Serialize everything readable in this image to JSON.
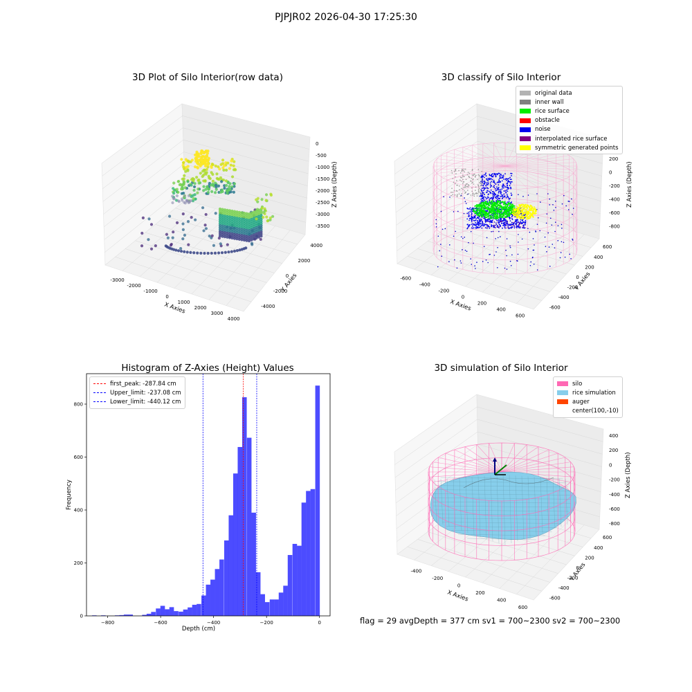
{
  "figure_title": "PJPJR02 2026-04-30 17:25:30",
  "panel1": {
    "title": "3D Plot of Silo Interior(row data)",
    "xlabel": "X Axies",
    "ylabel": "Y Axies",
    "zlabel": "Z Axies (Depth)",
    "xticks": [
      "-3000",
      "-2000",
      "-1000",
      "0",
      "1000",
      "2000",
      "3000",
      "4000"
    ],
    "yticks": [
      "-4000",
      "-2000",
      "0",
      "2000",
      "4000"
    ],
    "zticks": [
      "0",
      "-500",
      "-1000",
      "-1500",
      "-2000",
      "-2500",
      "-3000",
      "-3500"
    ]
  },
  "panel2": {
    "title": "3D classify of Silo Interior",
    "xlabel": "X Axies",
    "ylabel": "Y Axies",
    "zlabel": "Z Axies (Depth)",
    "xticks": [
      "-600",
      "-400",
      "-200",
      "0",
      "200",
      "400",
      "600"
    ],
    "yticks": [
      "-600",
      "-400",
      "-200",
      "0",
      "200",
      "400",
      "600"
    ],
    "zticks": [
      "200",
      "0",
      "-200",
      "-400",
      "-600",
      "-800"
    ],
    "legend": [
      {
        "label": "original data",
        "color": "#b3b3b3"
      },
      {
        "label": "inner wall",
        "color": "#808080"
      },
      {
        "label": "rice surface",
        "color": "#00ee00"
      },
      {
        "label": "obstacle",
        "color": "#ff0000"
      },
      {
        "label": "noise",
        "color": "#0000ee"
      },
      {
        "label": "interpolated rice surface",
        "color": "#800080"
      },
      {
        "label": "symmetric generated points",
        "color": "#ffff00"
      }
    ]
  },
  "panel4": {
    "title": "3D simulation of Silo Interior",
    "xlabel": "X Axies",
    "ylabel": "Y Axies",
    "zlabel": "Z Axies (Depth)",
    "xticks": [
      "-400",
      "-200",
      "0",
      "200",
      "400",
      "600"
    ],
    "yticks": [
      "-600",
      "-400",
      "-200",
      "0",
      "200",
      "400",
      "600"
    ],
    "zticks": [
      "400",
      "200",
      "0",
      "-200",
      "-400",
      "-600",
      "-800"
    ],
    "legend": [
      {
        "label": "silo",
        "color": "#ff69b4"
      },
      {
        "label": "rice simulation",
        "color": "#87ceeb"
      },
      {
        "label": "auger",
        "color": "#ff4500"
      },
      {
        "label": "center(100,-10)",
        "color": ""
      }
    ]
  },
  "footer": "flag = 29  avgDepth = 377 cm  sv1 = 700~2300  sv2 = 700~2300",
  "chart_data": {
    "type": "bar",
    "title": "Histogram of Z-Axies (Height) Values",
    "xlabel": "Depth (cm)",
    "ylabel": "Frequency",
    "xlim": [
      -880,
      40
    ],
    "ylim": [
      0,
      915
    ],
    "xticks": [
      -800,
      -600,
      -400,
      -200,
      0
    ],
    "yticks": [
      0,
      200,
      400,
      600,
      800
    ],
    "bar_color": "#0000ff",
    "legend_position": "upper left",
    "bin_width": 17.2,
    "bins_start": [
      -859,
      -842,
      -825,
      -808,
      -790,
      -773,
      -756,
      -739,
      -722,
      -704,
      -687,
      -670,
      -653,
      -636,
      -618,
      -601,
      -584,
      -567,
      -550,
      -532,
      -515,
      -498,
      -481,
      -464,
      -446,
      -429,
      -412,
      -395,
      -378,
      -360,
      -343,
      -326,
      -309,
      -292,
      -274,
      -257,
      -240,
      -223,
      -206,
      -188,
      -171,
      -154,
      -137,
      -120,
      -102,
      -85,
      -68,
      -51,
      -34,
      -16
    ],
    "values": [
      2,
      0,
      2,
      0,
      0,
      2,
      3,
      5,
      5,
      0,
      0,
      4,
      8,
      15,
      28,
      38,
      25,
      33,
      18,
      16,
      24,
      32,
      42,
      45,
      77,
      118,
      137,
      177,
      213,
      285,
      380,
      538,
      638,
      826,
      673,
      390,
      165,
      82,
      52,
      62,
      62,
      88,
      114,
      230,
      272,
      265,
      428,
      472,
      479,
      870
    ],
    "vlines": [
      {
        "label": "first_peak: -287.84 cm",
        "x": -287.84,
        "color": "#ff0000"
      },
      {
        "label": "Upper_limit: -237.08 cm",
        "x": -237.08,
        "color": "#0000ff"
      },
      {
        "label": "Lower_limit: -440.12 cm",
        "x": -440.12,
        "color": "#0000ff"
      }
    ]
  }
}
